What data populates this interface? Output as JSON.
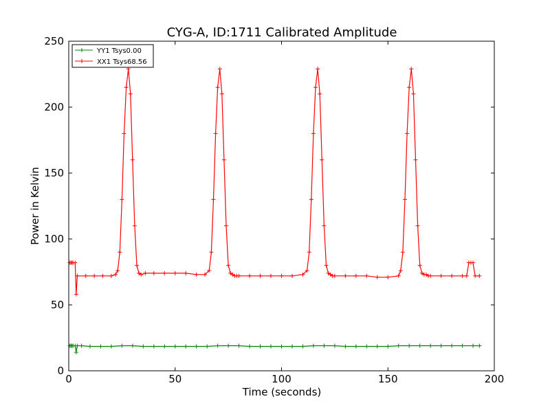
{
  "chart_data": {
    "type": "line",
    "title": "CYG-A, ID:1711 Calibrated Amplitude",
    "xlabel": "Time (seconds)",
    "ylabel": "Power in Kelvin",
    "xlim": [
      0,
      200
    ],
    "ylim": [
      0,
      250
    ],
    "xticks": [
      "0",
      "50",
      "100",
      "150",
      "200"
    ],
    "yticks": [
      "0",
      "50",
      "100",
      "150",
      "200",
      "250"
    ],
    "grid": false,
    "legend_position": "top-left",
    "marker": "plus",
    "series": [
      {
        "name": "YY1 Tsys0.00",
        "color": "#008000",
        "x": [
          0.5,
          1,
          1.5,
          2,
          3,
          3.5,
          4,
          6,
          10,
          15,
          20,
          25,
          30,
          35,
          40,
          45,
          50,
          55,
          60,
          65,
          70,
          75,
          80,
          85,
          90,
          95,
          100,
          105,
          110,
          115,
          120,
          125,
          130,
          135,
          140,
          145,
          150,
          155,
          160,
          165,
          170,
          175,
          180,
          185,
          190,
          193
        ],
        "y": [
          19,
          19,
          19,
          19,
          19,
          14,
          19,
          19,
          18.5,
          18.5,
          18.5,
          19,
          19,
          18.5,
          18.5,
          18.5,
          18.5,
          18.5,
          18.5,
          18.5,
          19,
          19,
          19,
          18.5,
          18.5,
          18.5,
          18.5,
          18.5,
          18.5,
          19,
          19,
          19,
          18.5,
          18.5,
          18.5,
          18.5,
          18.5,
          19,
          19,
          19,
          19,
          19,
          19,
          19,
          19,
          19
        ]
      },
      {
        "name": "XX1 Tsys68.56",
        "color": "#ff0000",
        "x": [
          0.5,
          1,
          1.5,
          2,
          3,
          3.5,
          4,
          8,
          12,
          16,
          20,
          22,
          23,
          24,
          25,
          26,
          27,
          28,
          29,
          30,
          31,
          32,
          33,
          34,
          36,
          40,
          45,
          50,
          55,
          60,
          64,
          66,
          67,
          68,
          69,
          70,
          71,
          72,
          73,
          74,
          75,
          76,
          77,
          78,
          79,
          80,
          85,
          90,
          95,
          100,
          105,
          110,
          112,
          113,
          114,
          115,
          116,
          117,
          118,
          119,
          120,
          121,
          122,
          123,
          124,
          125,
          130,
          135,
          140,
          145,
          150,
          155,
          156,
          157,
          158,
          159,
          160,
          161,
          162,
          163,
          164,
          165,
          166,
          167,
          168,
          169,
          170,
          175,
          180,
          185,
          187,
          188,
          189,
          190,
          191,
          193
        ],
        "y": [
          82,
          82,
          82,
          82,
          82,
          58,
          72,
          72,
          72,
          72,
          72,
          73,
          76,
          90,
          130,
          180,
          215,
          229,
          210,
          160,
          110,
          80,
          74,
          73,
          74,
          74,
          74,
          74,
          74,
          73,
          73,
          76,
          90,
          130,
          180,
          215,
          229,
          210,
          160,
          110,
          80,
          74,
          73,
          72,
          72,
          72,
          72,
          72,
          72,
          72,
          72,
          73,
          76,
          90,
          130,
          180,
          215,
          229,
          210,
          160,
          110,
          80,
          74,
          73,
          72,
          72,
          72,
          72,
          72,
          71,
          71,
          72,
          76,
          90,
          130,
          180,
          215,
          229,
          210,
          160,
          110,
          80,
          74,
          73,
          73,
          72,
          72,
          72,
          72,
          72,
          72,
          82,
          82,
          82,
          72,
          72
        ]
      }
    ]
  }
}
